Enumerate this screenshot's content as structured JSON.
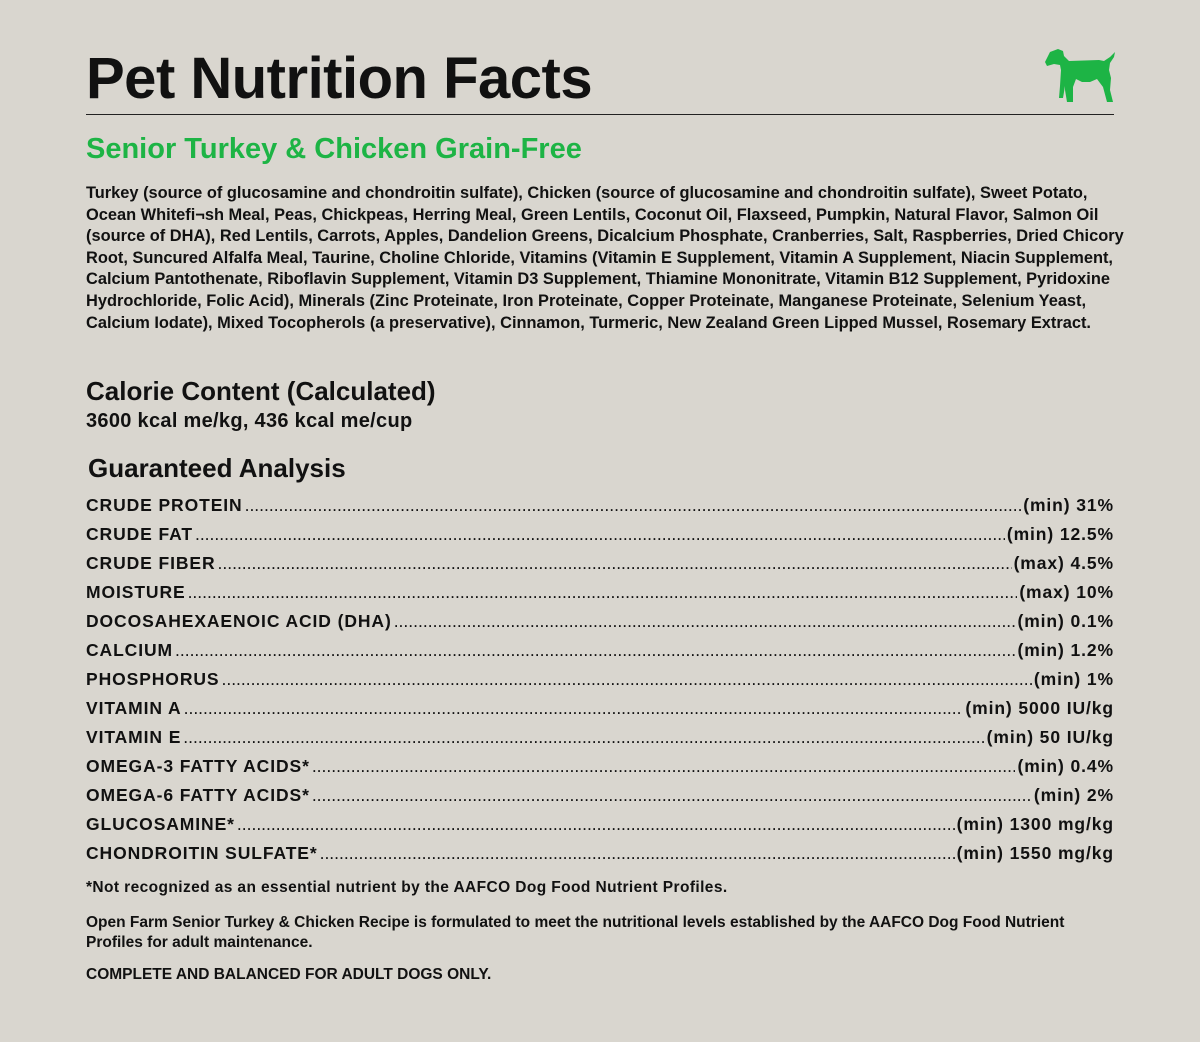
{
  "header": {
    "title": "Pet Nutrition Facts",
    "icon": "dog-icon"
  },
  "product": {
    "name": "Senior Turkey & Chicken Grain-Free"
  },
  "ingredients": "Turkey (source of glucosamine and chondroitin sulfate), Chicken (source of glucosamine and chondroitin sulfate), Sweet Potato, Ocean Whitefi¬sh Meal, Peas, Chickpeas, Herring Meal, Green Lentils, Coconut Oil, Flaxseed, Pumpkin, Natural Flavor, Salmon Oil (source of DHA), Red Lentils, Carrots, Apples, Dandelion Greens, Dicalcium Phosphate, Cranberries, Salt, Raspberries, Dried Chicory Root, Suncured Alfalfa Meal, Taurine, Choline Chloride, Vitamins (Vitamin E Supplement, Vitamin A Supplement, Niacin Supplement, Calcium Pantothenate, Riboflavin Supplement, Vitamin D3 Supplement, Thiamine Mononitrate, Vitamin B12 Supplement, Pyridoxine Hydrochloride, Folic Acid), Minerals (Zinc Proteinate, Iron Proteinate, Copper Proteinate, Manganese Proteinate, Selenium Yeast, Calcium Iodate), Mixed Tocopherols (a preservative), Cinnamon, Turmeric, New Zealand Green Lipped Mussel, Rosemary Extract.",
  "calorie": {
    "title": "Calorie Content (Calculated)",
    "value": "3600 kcal me/kg, 436 kcal me/cup"
  },
  "analysis": {
    "title": "Guaranteed Analysis",
    "rows": [
      {
        "name": "CRUDE PROTEIN",
        "value": "(min) 31%"
      },
      {
        "name": "CRUDE FAT",
        "value": "(min) 12.5%"
      },
      {
        "name": "CRUDE FIBER",
        "value": "(max) 4.5%"
      },
      {
        "name": "MOISTURE",
        "value": "(max) 10%"
      },
      {
        "name": "DOCOSAHEXAENOIC ACID (DHA)",
        "value": "(min) 0.1%"
      },
      {
        "name": "CALCIUM",
        "value": "(min) 1.2%"
      },
      {
        "name": "PHOSPHORUS",
        "value": "(min) 1%"
      },
      {
        "name": "VITAMIN A",
        "value": "(min) 5000 IU/kg"
      },
      {
        "name": "VITAMIN E",
        "value": "(min) 50 IU/kg"
      },
      {
        "name": "OMEGA-3 FATTY ACIDS*",
        "value": "(min) 0.4%"
      },
      {
        "name": "OMEGA-6 FATTY ACIDS*",
        "value": "(min) 2%"
      },
      {
        "name": "GLUCOSAMINE*",
        "value": "(min) 1300 mg/kg"
      },
      {
        "name": "CHONDROITIN SULFATE*",
        "value": "(min) 1550 mg/kg"
      }
    ]
  },
  "footnote": "*Not recognized as an essential nutrient by the AAFCO Dog Food Nutrient Profiles.",
  "statement": "Open Farm Senior Turkey & Chicken Recipe is formulated to meet the nutritional levels established by the AAFCO Dog Food Nutrient Profiles for adult maintenance.",
  "complete": "COMPLETE AND BALANCED FOR ADULT DOGS ONLY.",
  "colors": {
    "background": "#d9d6cf",
    "accent_green": "#1db445",
    "text": "#111111"
  }
}
